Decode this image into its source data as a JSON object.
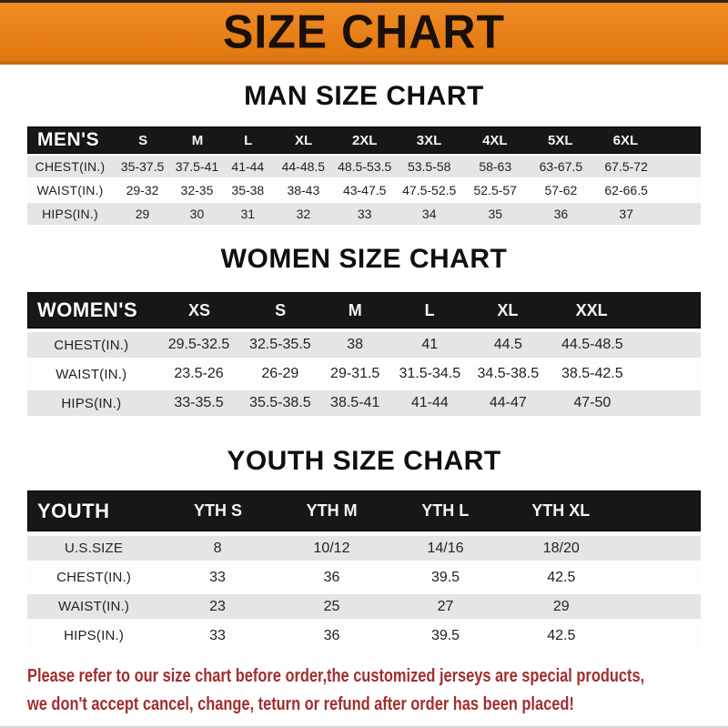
{
  "banner": {
    "title": "SIZE CHART"
  },
  "colors": {
    "c-orange": "#e8801a",
    "c-bar": "#171717",
    "c-row-gray": "#e5e5e5",
    "c-red": "#a32d2d"
  },
  "sections": [
    {
      "title": "MAN SIZE CHART",
      "header_label": "MEN'S",
      "columns": [
        "S",
        "M",
        "L",
        "XL",
        "2XL",
        "3XL",
        "4XL",
        "5XL",
        "6XL"
      ],
      "rows": [
        {
          "label": "CHEST(IN.)",
          "values": [
            "35-37.5",
            "37.5-41",
            "41-44",
            "44-48.5",
            "48.5-53.5",
            "53.5-58",
            "58-63",
            "63-67.5",
            "67.5-72"
          ]
        },
        {
          "label": "WAIST(IN.)",
          "values": [
            "29-32",
            "32-35",
            "35-38",
            "38-43",
            "43-47.5",
            "47.5-52.5",
            "52.5-57",
            "57-62",
            "62-66.5"
          ]
        },
        {
          "label": "HIPS(IN.)",
          "values": [
            "29",
            "30",
            "31",
            "32",
            "33",
            "34",
            "35",
            "36",
            "37"
          ]
        }
      ]
    },
    {
      "title": "WOMEN SIZE CHART",
      "header_label": "WOMEN'S",
      "columns": [
        "XS",
        "S",
        "M",
        "L",
        "XL",
        "XXL"
      ],
      "rows": [
        {
          "label": "CHEST(IN.)",
          "values": [
            "29.5-32.5",
            "32.5-35.5",
            "38",
            "41",
            "44.5",
            "44.5-48.5"
          ]
        },
        {
          "label": "WAIST(IN.)",
          "values": [
            "23.5-26",
            "26-29",
            "29-31.5",
            "31.5-34.5",
            "34.5-38.5",
            "38.5-42.5"
          ]
        },
        {
          "label": "HIPS(IN.)",
          "values": [
            "33-35.5",
            "35.5-38.5",
            "38.5-41",
            "41-44",
            "44-47",
            "47-50"
          ]
        }
      ]
    },
    {
      "title": "YOUTH SIZE CHART",
      "header_label": "YOUTH",
      "columns": [
        "YTH S",
        "YTH M",
        "YTH L",
        "YTH XL"
      ],
      "rows": [
        {
          "label": "U.S.SIZE",
          "values": [
            "8",
            "10/12",
            "14/16",
            "18/20"
          ]
        },
        {
          "label": "CHEST(IN.)",
          "values": [
            "33",
            "36",
            "39.5",
            "42.5"
          ]
        },
        {
          "label": "WAIST(IN.)",
          "values": [
            "23",
            "25",
            "27",
            "29"
          ]
        },
        {
          "label": "HIPS(IN.)",
          "values": [
            "33",
            "36",
            "39.5",
            "42.5"
          ]
        }
      ]
    }
  ],
  "footer": {
    "line1": "Please refer to our size chart before order,the customized jerseys are special products,",
    "line2": "we don't accept cancel, change, teturn or refund after order has been placed!"
  }
}
